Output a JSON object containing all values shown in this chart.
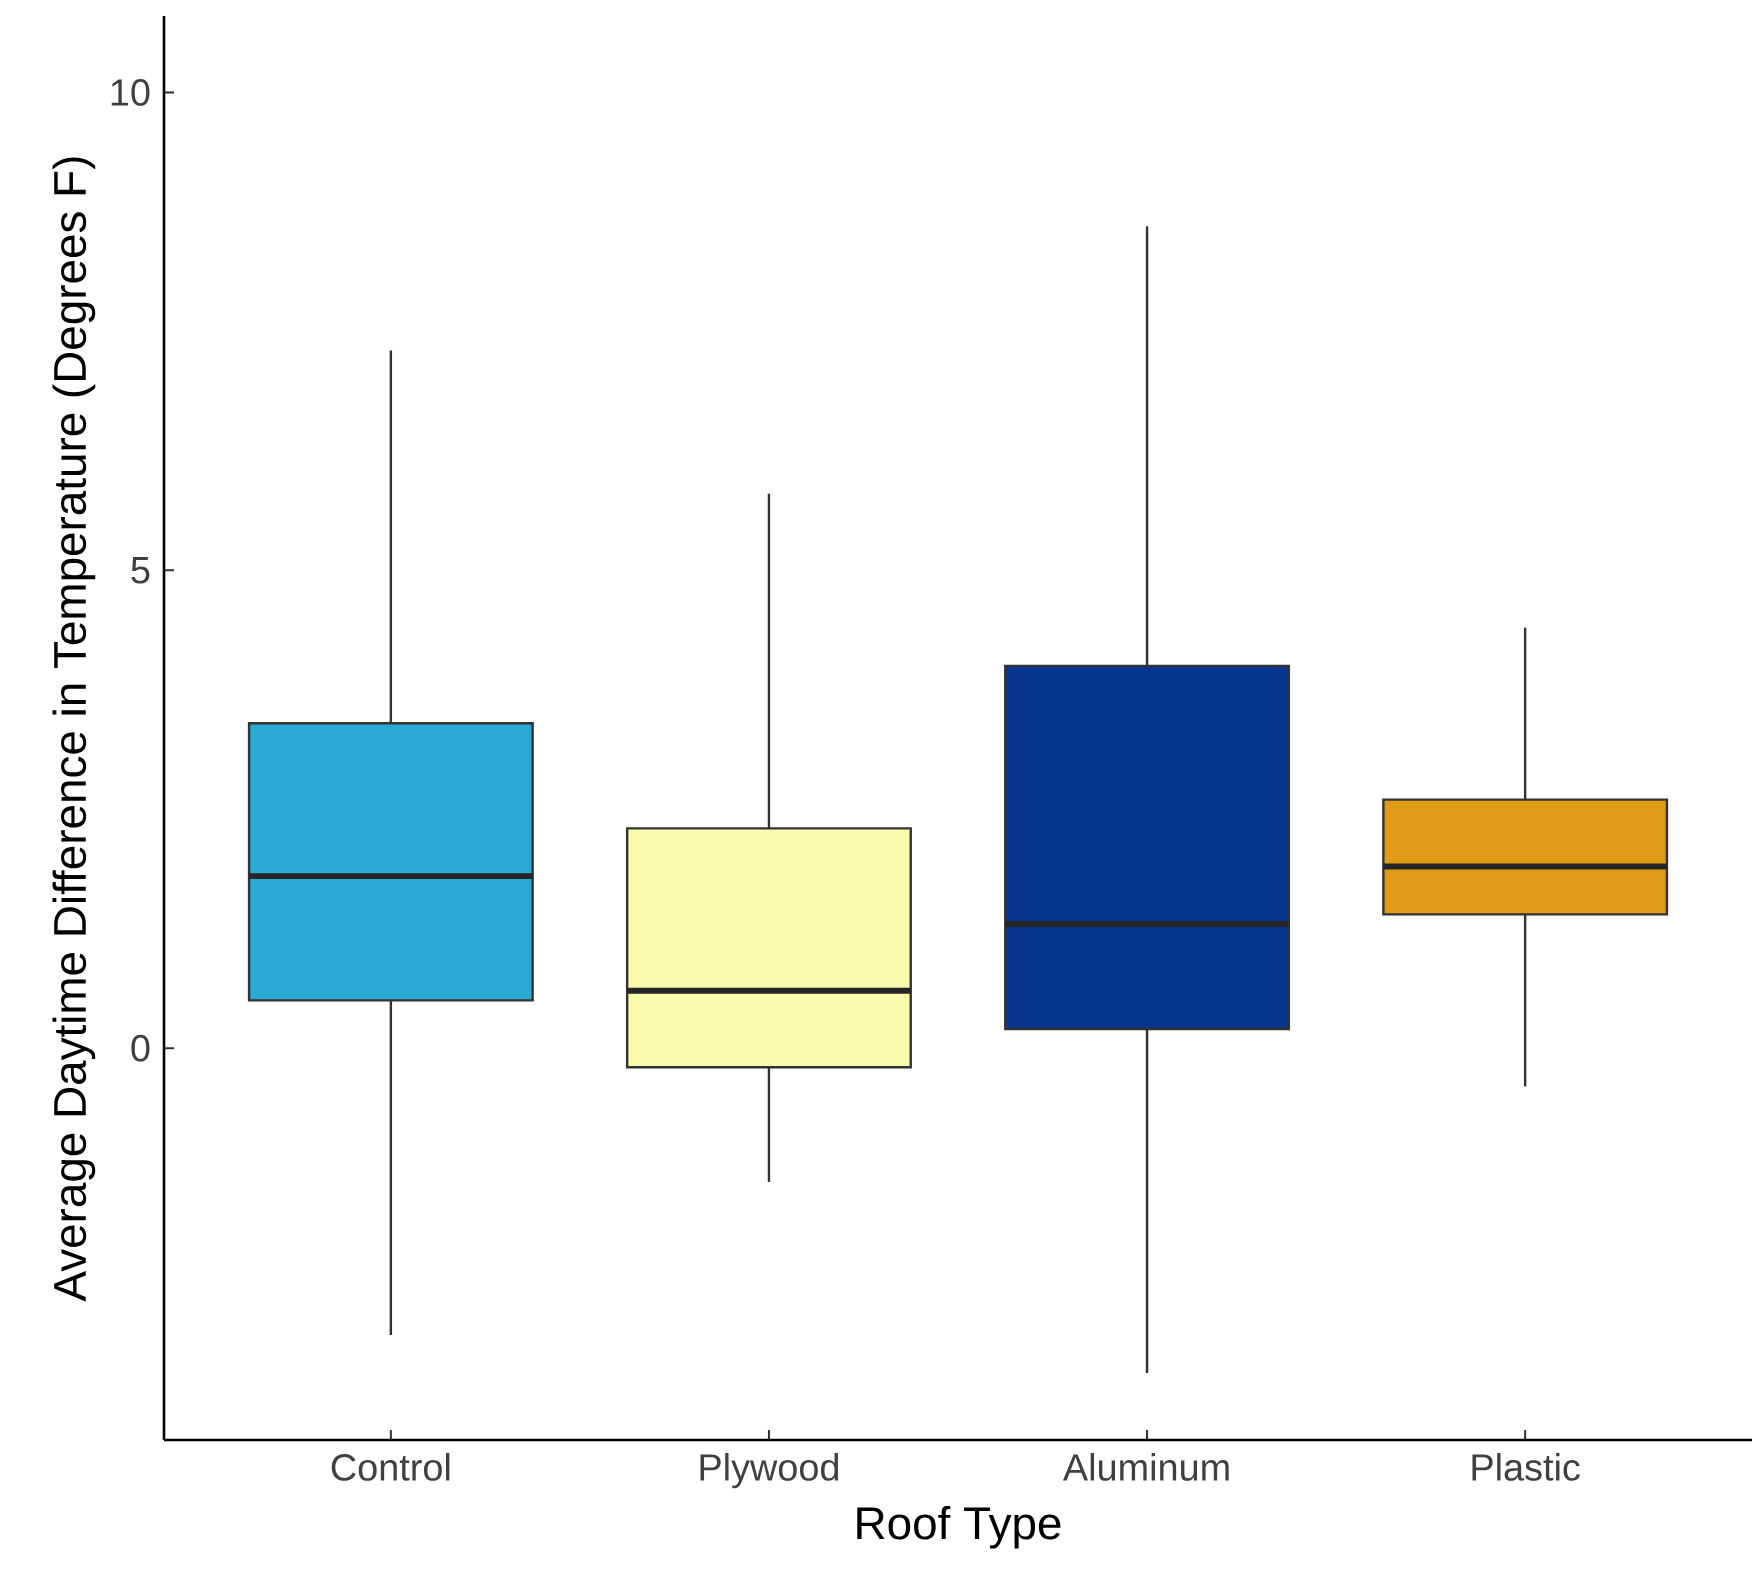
{
  "chart_data": {
    "type": "box",
    "xlabel": "Roof Type",
    "ylabel": "Average Daytime Difference in Temperature (Degrees F)",
    "categories": [
      "Control",
      "Plywood",
      "Aluminum",
      "Plastic"
    ],
    "colors": [
      "#29a9d3",
      "#f9fcac",
      "#073590",
      "#e09c18"
    ],
    "boxes": [
      {
        "low": -3.0,
        "q1": 0.5,
        "median": 1.8,
        "q3": 3.4,
        "high": 7.3
      },
      {
        "low": -1.4,
        "q1": -0.2,
        "median": 0.6,
        "q3": 2.3,
        "high": 5.8
      },
      {
        "low": -3.4,
        "q1": 0.2,
        "median": 1.3,
        "q3": 4.0,
        "high": 8.6
      },
      {
        "low": -0.4,
        "q1": 1.4,
        "median": 1.9,
        "q3": 2.6,
        "high": 4.4
      }
    ],
    "ylim": [
      -4.1,
      10.8
    ],
    "yticks": [
      0,
      5,
      10
    ],
    "grid": false
  }
}
